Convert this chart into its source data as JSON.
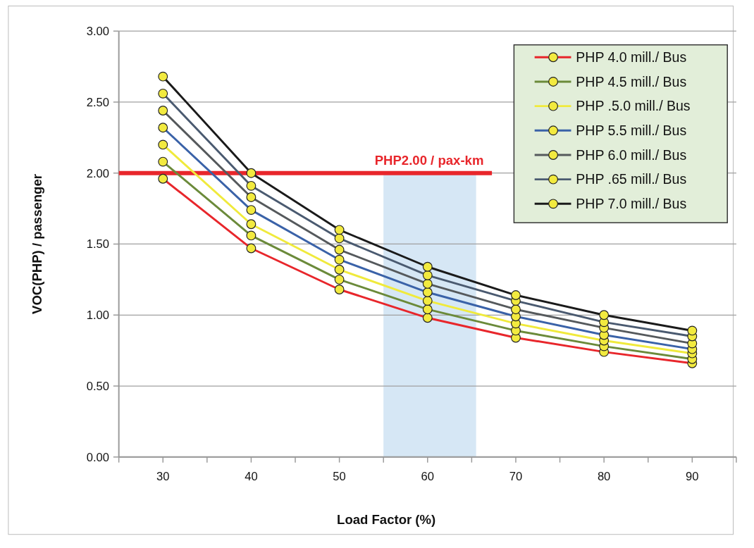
{
  "chart_data": {
    "type": "line",
    "xlabel": "Load Factor (%)",
    "ylabel": "VOC(PHP) / passenger",
    "x": [
      30,
      40,
      50,
      60,
      70,
      80,
      90
    ],
    "xlim": [
      25,
      95
    ],
    "xticks": [
      {
        "value": 25,
        "label": null
      },
      30,
      {
        "value": 35,
        "label": null
      },
      40,
      {
        "value": 45,
        "label": null
      },
      50,
      {
        "value": 55,
        "label": null
      },
      60,
      {
        "value": 65,
        "label": null
      },
      70,
      {
        "value": 75,
        "label": null
      },
      80,
      {
        "value": 85,
        "label": null
      },
      90,
      {
        "value": 95,
        "label": null
      }
    ],
    "ylim": [
      0,
      3
    ],
    "yticks": [
      {
        "value": 0,
        "label": "0.00"
      },
      {
        "value": 0.5,
        "label": "0.50"
      },
      {
        "value": 1,
        "label": "1.00"
      },
      {
        "value": 1.5,
        "label": "1.50"
      },
      {
        "value": 2,
        "label": "2.00"
      },
      {
        "value": 2.5,
        "label": "2.50"
      },
      {
        "value": 3,
        "label": "3.00"
      }
    ],
    "grid": "y",
    "legend": "top right",
    "marker": "circle",
    "line_style": "solid",
    "series": [
      {
        "name": "PHP 4.0 mill./ Bus",
        "color": "#e8262b",
        "values": [
          1.96,
          1.47,
          1.18,
          0.98,
          0.84,
          0.74,
          0.66
        ]
      },
      {
        "name": "PHP 4.5 mill./ Bus",
        "color": "#6b8a3a",
        "values": [
          2.08,
          1.56,
          1.25,
          1.04,
          0.89,
          0.78,
          0.69
        ]
      },
      {
        "name": "PHP .5.0 mill./ Bus",
        "color": "#f0ea3c",
        "values": [
          2.2,
          1.64,
          1.32,
          1.1,
          0.94,
          0.82,
          0.73
        ]
      },
      {
        "name": "PHP 5.5 mill./ Bus",
        "color": "#3a62a8",
        "values": [
          2.32,
          1.74,
          1.39,
          1.16,
          0.99,
          0.86,
          0.76
        ]
      },
      {
        "name": "PHP 6.0 mill./ Bus",
        "color": "#55595c",
        "values": [
          2.44,
          1.83,
          1.46,
          1.22,
          1.04,
          0.91,
          0.8
        ]
      },
      {
        "name": "PHP .65 mill./ Bus",
        "color": "#4a5a70",
        "values": [
          2.56,
          1.91,
          1.54,
          1.28,
          1.1,
          0.95,
          0.85
        ]
      },
      {
        "name": "PHP 7.0 mill./ Bus",
        "color": "#1a1a1a",
        "values": [
          2.68,
          2.0,
          1.6,
          1.34,
          1.14,
          1.0,
          0.89
        ]
      }
    ],
    "ref_lines": [
      {
        "axis": "y",
        "value": 2,
        "label": "PHP2.00 / pax-km",
        "color": "#e8262b"
      }
    ],
    "bands": [
      {
        "axis": "x",
        "from": 55,
        "to": 65.5,
        "color": "#cfe3f3"
      }
    ]
  }
}
